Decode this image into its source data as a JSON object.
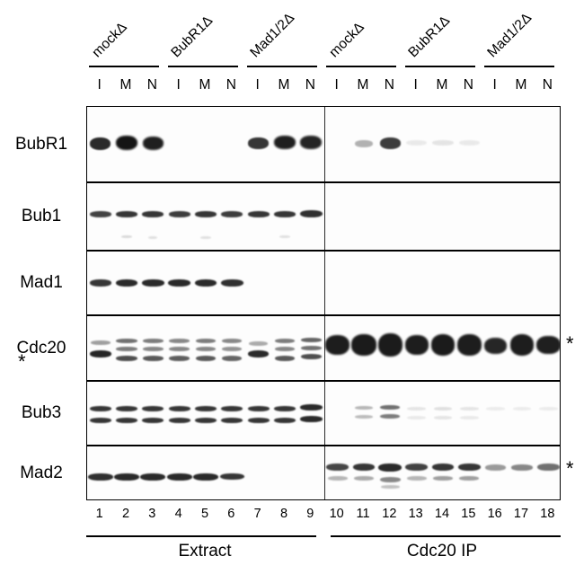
{
  "figure": {
    "groups": [
      {
        "label": "mockΔ"
      },
      {
        "label": "BubR1Δ"
      },
      {
        "label": "Mad1/2Δ"
      },
      {
        "label": "mockΔ"
      },
      {
        "label": "BubR1Δ"
      },
      {
        "label": "Mad1/2Δ"
      }
    ],
    "lane_letters": [
      "I",
      "M",
      "N",
      "I",
      "M",
      "N",
      "I",
      "M",
      "N",
      "I",
      "M",
      "N",
      "I",
      "M",
      "N",
      "I",
      "M",
      "N"
    ],
    "lane_numbers": [
      "1",
      "2",
      "3",
      "4",
      "5",
      "6",
      "7",
      "8",
      "9",
      "10",
      "11",
      "12",
      "13",
      "14",
      "15",
      "16",
      "17",
      "18"
    ],
    "panels": [
      {
        "label": "Extract"
      },
      {
        "label": "Cdc20 IP"
      }
    ],
    "asterisk": "*",
    "colors": {
      "band": "#141414",
      "border": "#000000",
      "background": "#ffffff"
    },
    "rows": [
      {
        "label": "BubR1",
        "asterisk_left": false,
        "asterisk_right": false,
        "bands": [
          [
            1,
            0.48,
            14,
            0.9,
            0.8
          ],
          [
            2,
            0.47,
            16,
            1,
            0.84
          ],
          [
            3,
            0.48,
            15,
            0.95,
            0.8
          ],
          [
            7,
            0.48,
            13,
            0.85,
            0.78
          ],
          [
            8,
            0.47,
            15,
            0.95,
            0.82
          ],
          [
            9,
            0.47,
            15,
            0.93,
            0.82
          ],
          [
            11,
            0.48,
            8,
            0.32,
            0.68
          ],
          [
            12,
            0.48,
            13,
            0.82,
            0.78
          ],
          [
            13,
            0.47,
            6,
            0.08,
            0.8
          ],
          [
            14,
            0.47,
            6,
            0.1,
            0.8
          ],
          [
            15,
            0.47,
            6,
            0.08,
            0.8
          ]
        ]
      },
      {
        "label": "Bub1",
        "asterisk_left": false,
        "asterisk_right": false,
        "bands": [
          [
            1,
            0.46,
            7,
            0.8,
            0.82
          ],
          [
            2,
            0.46,
            7,
            0.85,
            0.82
          ],
          [
            3,
            0.46,
            7,
            0.85,
            0.82
          ],
          [
            4,
            0.46,
            7,
            0.82,
            0.82
          ],
          [
            5,
            0.46,
            7,
            0.85,
            0.82
          ],
          [
            6,
            0.46,
            7,
            0.82,
            0.82
          ],
          [
            7,
            0.46,
            7,
            0.85,
            0.82
          ],
          [
            8,
            0.46,
            7,
            0.85,
            0.82
          ],
          [
            9,
            0.45,
            8,
            0.88,
            0.85
          ],
          [
            2,
            0.78,
            3,
            0.15,
            0.4
          ],
          [
            3,
            0.8,
            3,
            0.12,
            0.35
          ],
          [
            5,
            0.79,
            3,
            0.12,
            0.4
          ],
          [
            8,
            0.78,
            3,
            0.12,
            0.4
          ]
        ]
      },
      {
        "label": "Mad1",
        "asterisk_left": false,
        "asterisk_right": false,
        "bands": [
          [
            1,
            0.48,
            8,
            0.85,
            0.82
          ],
          [
            2,
            0.48,
            8,
            0.9,
            0.85
          ],
          [
            3,
            0.48,
            8,
            0.9,
            0.85
          ],
          [
            4,
            0.48,
            8,
            0.9,
            0.85
          ],
          [
            5,
            0.48,
            8,
            0.9,
            0.85
          ],
          [
            6,
            0.48,
            8,
            0.88,
            0.85
          ]
        ]
      },
      {
        "label": "Cdc20",
        "asterisk_left": true,
        "asterisk_right": true,
        "bands": [
          [
            1,
            0.4,
            5,
            0.4,
            0.75
          ],
          [
            1,
            0.58,
            8,
            0.92,
            0.82
          ],
          [
            2,
            0.38,
            5,
            0.6,
            0.8
          ],
          [
            2,
            0.5,
            5,
            0.55,
            0.8
          ],
          [
            2,
            0.64,
            6,
            0.75,
            0.8
          ],
          [
            3,
            0.38,
            5,
            0.55,
            0.78
          ],
          [
            3,
            0.5,
            5,
            0.5,
            0.78
          ],
          [
            3,
            0.64,
            6,
            0.7,
            0.78
          ],
          [
            4,
            0.38,
            5,
            0.5,
            0.78
          ],
          [
            4,
            0.5,
            5,
            0.5,
            0.78
          ],
          [
            4,
            0.64,
            6,
            0.68,
            0.78
          ],
          [
            5,
            0.38,
            5,
            0.55,
            0.78
          ],
          [
            5,
            0.5,
            5,
            0.5,
            0.78
          ],
          [
            5,
            0.64,
            6,
            0.7,
            0.78
          ],
          [
            6,
            0.38,
            5,
            0.5,
            0.75
          ],
          [
            6,
            0.5,
            5,
            0.45,
            0.75
          ],
          [
            6,
            0.64,
            6,
            0.65,
            0.75
          ],
          [
            7,
            0.42,
            5,
            0.35,
            0.7
          ],
          [
            7,
            0.58,
            8,
            0.9,
            0.8
          ],
          [
            8,
            0.38,
            5,
            0.55,
            0.78
          ],
          [
            8,
            0.5,
            5,
            0.5,
            0.78
          ],
          [
            8,
            0.64,
            6,
            0.7,
            0.78
          ],
          [
            9,
            0.36,
            5,
            0.65,
            0.8
          ],
          [
            9,
            0.48,
            5,
            0.6,
            0.8
          ],
          [
            9,
            0.62,
            6,
            0.75,
            0.8
          ],
          [
            10,
            0.44,
            22,
            0.96,
            0.92
          ],
          [
            11,
            0.44,
            24,
            0.97,
            0.94
          ],
          [
            12,
            0.44,
            26,
            0.97,
            0.94
          ],
          [
            13,
            0.44,
            22,
            0.96,
            0.88
          ],
          [
            14,
            0.44,
            24,
            0.97,
            0.92
          ],
          [
            15,
            0.44,
            24,
            0.96,
            0.92
          ],
          [
            16,
            0.45,
            18,
            0.92,
            0.85
          ],
          [
            17,
            0.44,
            24,
            0.96,
            0.92
          ],
          [
            18,
            0.44,
            20,
            0.95,
            0.9
          ]
        ]
      },
      {
        "label": "Bub3",
        "asterisk_left": false,
        "asterisk_right": false,
        "bands": [
          [
            1,
            0.42,
            6,
            0.85,
            0.82
          ],
          [
            1,
            0.6,
            6,
            0.85,
            0.82
          ],
          [
            2,
            0.42,
            6,
            0.85,
            0.82
          ],
          [
            2,
            0.6,
            6,
            0.85,
            0.82
          ],
          [
            3,
            0.42,
            6,
            0.85,
            0.82
          ],
          [
            3,
            0.6,
            6,
            0.85,
            0.82
          ],
          [
            4,
            0.42,
            6,
            0.85,
            0.82
          ],
          [
            4,
            0.6,
            6,
            0.85,
            0.82
          ],
          [
            5,
            0.42,
            6,
            0.85,
            0.82
          ],
          [
            5,
            0.6,
            6,
            0.85,
            0.82
          ],
          [
            6,
            0.42,
            6,
            0.85,
            0.82
          ],
          [
            6,
            0.6,
            6,
            0.85,
            0.82
          ],
          [
            7,
            0.42,
            6,
            0.85,
            0.82
          ],
          [
            7,
            0.6,
            6,
            0.85,
            0.82
          ],
          [
            8,
            0.42,
            6,
            0.85,
            0.82
          ],
          [
            8,
            0.6,
            6,
            0.85,
            0.82
          ],
          [
            9,
            0.4,
            7,
            0.9,
            0.85
          ],
          [
            9,
            0.58,
            7,
            0.9,
            0.85
          ],
          [
            11,
            0.4,
            4,
            0.3,
            0.7
          ],
          [
            11,
            0.54,
            4,
            0.28,
            0.7
          ],
          [
            12,
            0.4,
            5,
            0.6,
            0.75
          ],
          [
            12,
            0.54,
            5,
            0.55,
            0.75
          ],
          [
            13,
            0.41,
            4,
            0.1,
            0.7
          ],
          [
            13,
            0.55,
            4,
            0.08,
            0.7
          ],
          [
            14,
            0.41,
            4,
            0.12,
            0.7
          ],
          [
            14,
            0.55,
            4,
            0.1,
            0.7
          ],
          [
            15,
            0.41,
            4,
            0.1,
            0.7
          ],
          [
            15,
            0.55,
            4,
            0.08,
            0.7
          ],
          [
            16,
            0.42,
            4,
            0.07,
            0.7
          ],
          [
            17,
            0.42,
            4,
            0.07,
            0.7
          ],
          [
            18,
            0.42,
            4,
            0.07,
            0.7
          ]
        ]
      },
      {
        "label": "Mad2",
        "asterisk_left": false,
        "asterisk_right": true,
        "bands": [
          [
            1,
            0.55,
            8,
            0.88,
            0.95
          ],
          [
            2,
            0.55,
            8,
            0.9,
            0.95
          ],
          [
            3,
            0.55,
            8,
            0.9,
            0.95
          ],
          [
            4,
            0.55,
            8,
            0.9,
            0.95
          ],
          [
            5,
            0.55,
            8,
            0.9,
            0.95
          ],
          [
            6,
            0.55,
            7,
            0.85,
            0.9
          ],
          [
            10,
            0.38,
            8,
            0.78,
            0.85
          ],
          [
            11,
            0.38,
            8,
            0.85,
            0.85
          ],
          [
            12,
            0.38,
            9,
            0.9,
            0.88
          ],
          [
            13,
            0.38,
            8,
            0.8,
            0.85
          ],
          [
            14,
            0.38,
            8,
            0.85,
            0.85
          ],
          [
            15,
            0.38,
            8,
            0.85,
            0.85
          ],
          [
            16,
            0.38,
            7,
            0.42,
            0.8
          ],
          [
            17,
            0.38,
            7,
            0.5,
            0.8
          ],
          [
            18,
            0.38,
            8,
            0.6,
            0.85
          ],
          [
            10,
            0.58,
            5,
            0.3,
            0.75
          ],
          [
            11,
            0.58,
            5,
            0.35,
            0.75
          ],
          [
            12,
            0.6,
            6,
            0.5,
            0.8
          ],
          [
            13,
            0.58,
            5,
            0.3,
            0.75
          ],
          [
            14,
            0.58,
            5,
            0.4,
            0.75
          ],
          [
            15,
            0.58,
            5,
            0.4,
            0.75
          ],
          [
            12,
            0.74,
            4,
            0.25,
            0.7
          ]
        ]
      }
    ]
  }
}
